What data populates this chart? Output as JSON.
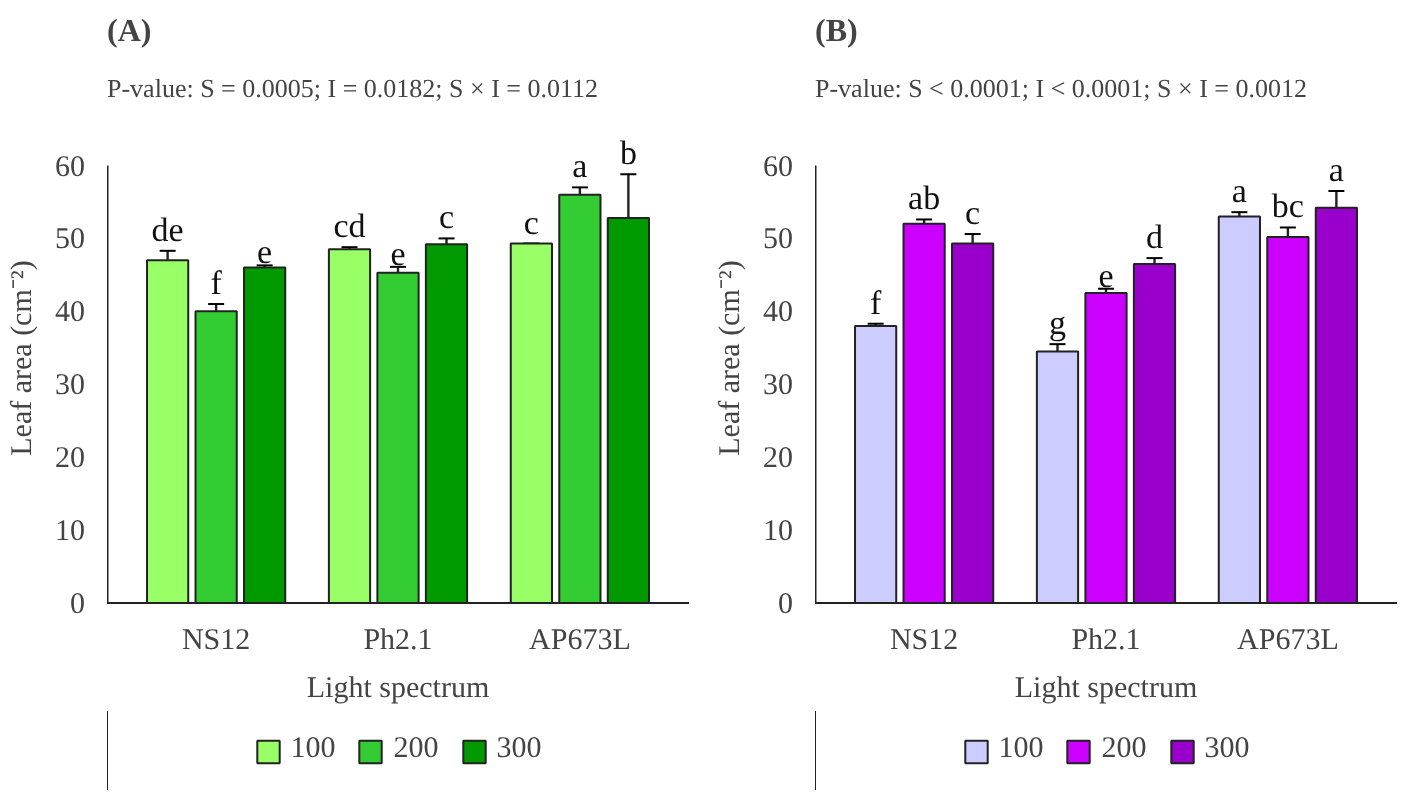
{
  "chart_data": [
    {
      "type": "bar",
      "title": "(A)",
      "subtitle": "P-value: S = 0.0005; I = 0.0182; S × I = 0.0112",
      "xlabel": "Light spectrum",
      "ylabel": "Leaf area (cm⁻²)",
      "categories": [
        "NS12",
        "Ph2.1",
        "AP673L"
      ],
      "ylim": [
        0,
        60
      ],
      "yticks": [
        0,
        10,
        20,
        30,
        40,
        50,
        60
      ],
      "grid": false,
      "legend": "bottom",
      "series": [
        {
          "name": "100",
          "color": "#99ff66",
          "values": [
            47,
            48.5,
            49.3
          ],
          "errors": [
            1.3,
            0.3,
            0
          ],
          "value_labels": [
            "de",
            "cd",
            "c"
          ]
        },
        {
          "name": "200",
          "color": "#33cc33",
          "values": [
            40,
            45.3,
            56
          ],
          "errors": [
            1,
            0.8,
            1
          ],
          "value_labels": [
            "f",
            "e",
            "a"
          ]
        },
        {
          "name": "300",
          "color": "#009900",
          "values": [
            46,
            49.2,
            52.8
          ],
          "errors": [
            0.3,
            0.8,
            6
          ],
          "value_labels": [
            "e",
            "c",
            "b"
          ]
        }
      ]
    },
    {
      "type": "bar",
      "title": "(B)",
      "subtitle": "P-value: S < 0.0001; I < 0.0001; S × I = 0.0012",
      "xlabel": "Light spectrum",
      "ylabel": "Leaf area (cm⁻²)",
      "categories": [
        "NS12",
        "Ph2.1",
        "AP673L"
      ],
      "ylim": [
        0,
        60
      ],
      "yticks": [
        0,
        10,
        20,
        30,
        40,
        50,
        60
      ],
      "grid": false,
      "legend": "bottom",
      "series": [
        {
          "name": "100",
          "color": "#ccccff",
          "values": [
            38,
            34.5,
            53
          ],
          "errors": [
            0.3,
            1,
            0.6
          ],
          "value_labels": [
            "f",
            "g",
            "a"
          ]
        },
        {
          "name": "200",
          "color": "#cc00ff",
          "values": [
            52,
            42.5,
            50.2
          ],
          "errors": [
            0.6,
            0.6,
            1.3
          ],
          "value_labels": [
            "ab",
            "e",
            "bc"
          ]
        },
        {
          "name": "300",
          "color": "#9900cc",
          "values": [
            49.3,
            46.5,
            54.2
          ],
          "errors": [
            1.3,
            0.8,
            2.3
          ],
          "value_labels": [
            "c",
            "d",
            "a"
          ]
        }
      ]
    }
  ]
}
